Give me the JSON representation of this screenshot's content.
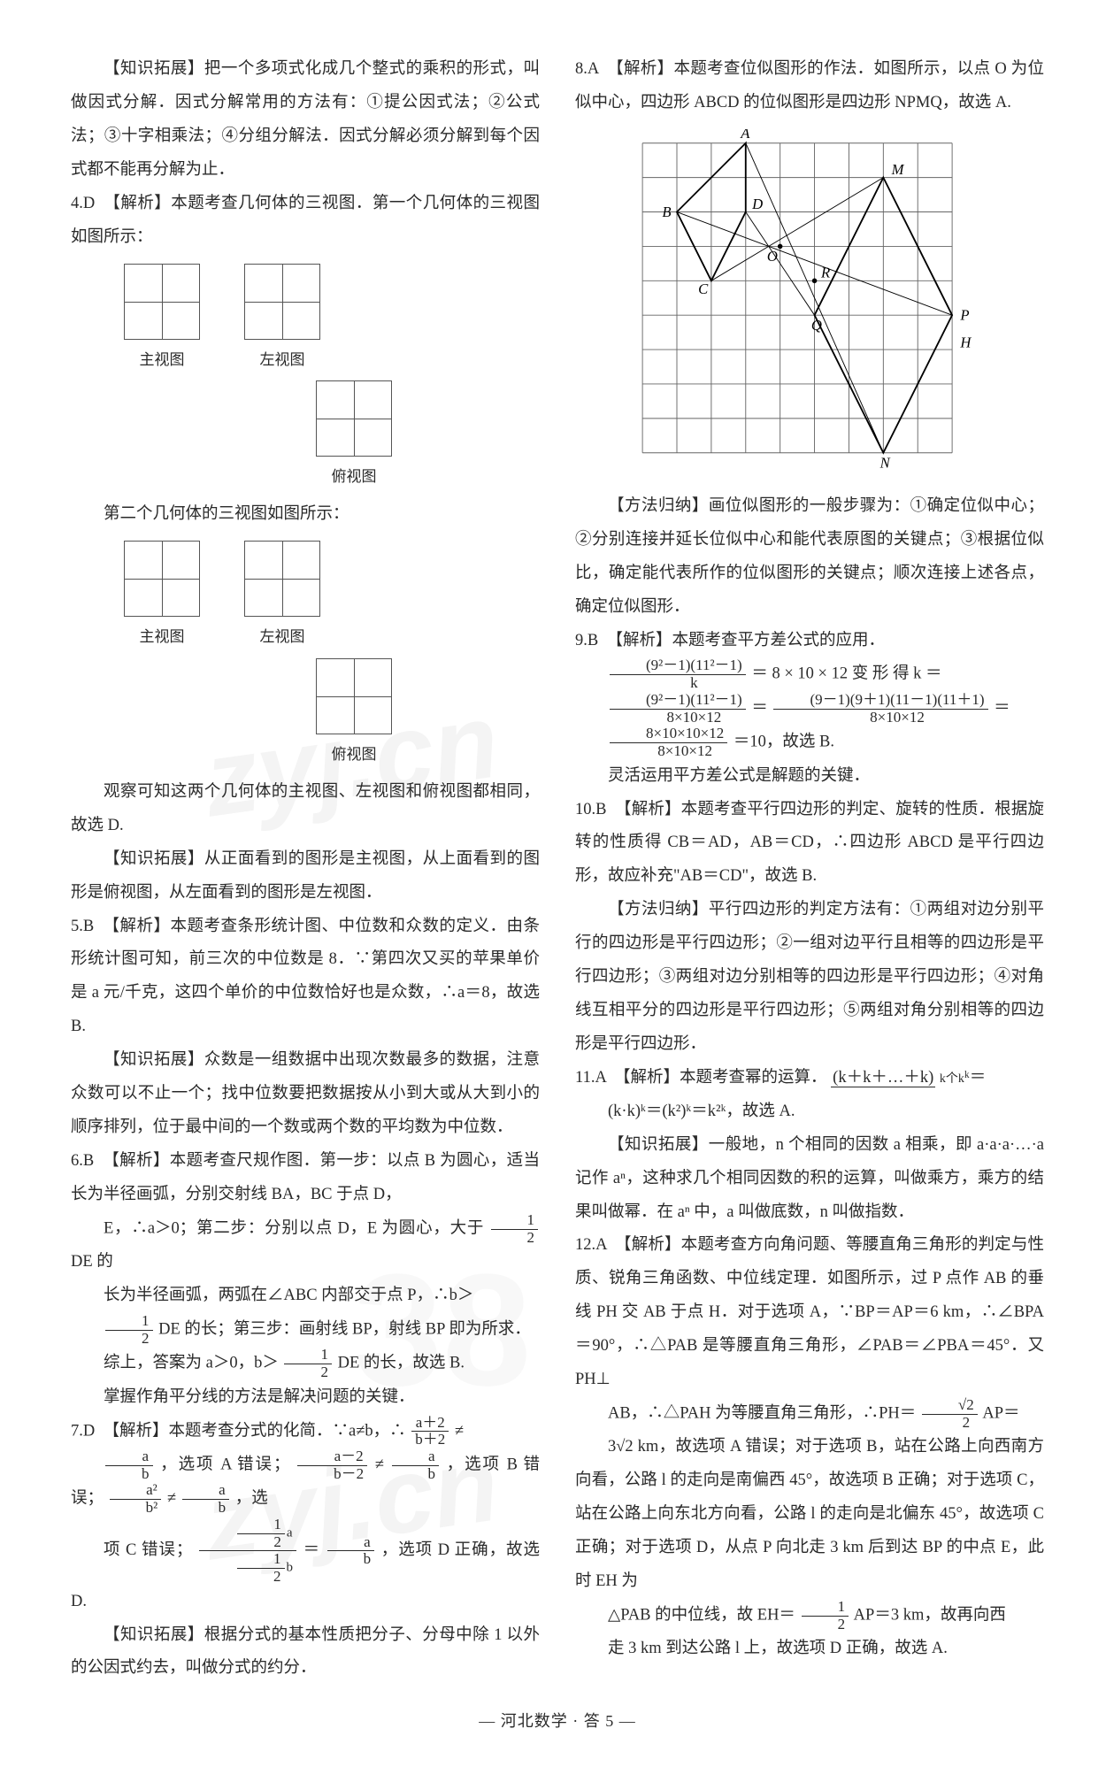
{
  "watermarks": {
    "text": "zyj.cn",
    "bg38": "38"
  },
  "left": {
    "kz1": "【知识拓展】把一个多项式化成几个整式的乘积的形式，叫做因式分解．因式分解常用的方法有：①提公因式法；②公式法；③十字相乘法；④分组分解法．因式分解必须分解到每个因式都不能再分解为止．",
    "q4_head": "4.D　【解析】本题考查几何体的三视图．第一个几何体的三视图如图所示：",
    "views": {
      "zhu": "主视图",
      "zuo": "左视图",
      "fu": "俯视图"
    },
    "q4_mid": "第二个几何体的三视图如图所示：",
    "q4_after": "观察可知这两个几何体的主视图、左视图和俯视图都相同，故选 D.",
    "kz2": "【知识拓展】从正面看到的图形是主视图，从上面看到的图形是俯视图，从左面看到的图形是左视图．",
    "q5": "5.B　【解析】本题考查条形统计图、中位数和众数的定义．由条形统计图可知，前三次的中位数是 8．∵第四次又买的苹果单价是 a 元/千克，这四个单价的中位数恰好也是众数，∴a＝8，故选 B.",
    "kz3": "【知识拓展】众数是一组数据中出现次数最多的数据，注意众数可以不止一个；找中位数要把数据按从小到大或从大到小的顺序排列，位于最中间的一个数或两个数的平均数为中位数．",
    "q6_a": "6.B　【解析】本题考查尺规作图．第一步：以点 B 为圆心，适当长为半径画弧，分别交射线 BA，BC 于点 D，",
    "q6_b": "E，∴a＞0；第二步：分别以点 D，E 为圆心，大于 ",
    "q6_b2": " DE 的",
    "q6_c": "长为半径画弧，两弧在∠ABC 内部交于点 P，∴b＞",
    "q6_d": "DE 的长；第三步：画射线 BP，射线 BP 即为所求．",
    "q6_e": "综上，答案为 a＞0，b＞",
    "q6_e2": "DE 的长，故选 B.",
    "q6_f": "掌握作角平分线的方法是解决问题的关键．",
    "q7_a": "7.D　【解析】本题考查分式的化简．∵a≠b，∴",
    "q7_a2": "≠",
    "q7_b": "，选项 A 错误；",
    "q7_b2": "≠",
    "q7_b3": "，选项 B 错误；",
    "q7_b4": "≠",
    "q7_b5": "，选",
    "q7_c": "项 C 错误；",
    "q7_c2": "＝",
    "q7_c3": "，选项 D 正确，故选 D.",
    "kz4": "【知识拓展】根据分式的基本性质把分子、分母中除 1 以外的公因式约去，叫做分式的约分．",
    "frac_half_num": "1",
    "frac_half_den": "2",
    "f_a2b2_n": "a＋2",
    "f_a2b2_d": "b＋2",
    "f_ab_n": "a",
    "f_ab_d": "b",
    "f_am2_n": "a－2",
    "f_am2_d": "b－2",
    "f_a2_n": "a²",
    "f_a2_d": "b²",
    "f_halfa_n": "½a",
    "f_halfa_d": "½b"
  },
  "right": {
    "q8": "8.A　【解析】本题考查位似图形的作法．如图所示，以点 O 为位似中心，四边形 ABCD 的位似图形是四边形 NPMQ，故选 A.",
    "grid": {
      "cols": 9,
      "rows": 9,
      "cell": 42,
      "line_color": "#666",
      "bg": "#fff",
      "labels": {
        "A": [
          3,
          0
        ],
        "B": [
          1,
          2
        ],
        "C": [
          2,
          4
        ],
        "D": [
          3,
          2
        ],
        "O": [
          4,
          3
        ],
        "M": [
          7,
          1
        ],
        "R": [
          5,
          4
        ],
        "Q": [
          5,
          5
        ],
        "P": [
          9,
          5
        ],
        "H": [
          9,
          5.7
        ],
        "N": [
          7,
          9
        ]
      },
      "poly1": [
        [
          3,
          0
        ],
        [
          1,
          2
        ],
        [
          2,
          4
        ],
        [
          3,
          2
        ]
      ],
      "poly2": [
        [
          7,
          1
        ],
        [
          9,
          5
        ],
        [
          7,
          9
        ],
        [
          5,
          5
        ]
      ]
    },
    "mf1": "【方法归纳】画位似图形的一般步骤为：①确定位似中心；②分别连接并延长位似中心和能代表原图的关键点；③根据位似比，确定能代表所作的位似图形的关键点；顺次连接上述各点，确定位似图形．",
    "q9_a": "9.B　【解析】本题考查平方差公式的应用．",
    "q9_f1n": "(9²－1)(11²－1)",
    "q9_f1d": "k",
    "q9_b": "＝ 8 × 10 × 12  变 形 得  k ＝",
    "q9_f2n": "(9²－1)(11²－1)",
    "q9_f2d": "8×10×12",
    "q9_c": "＝",
    "q9_f3n": "(9－1)(9＋1)(11－1)(11＋1)",
    "q9_f3d": "8×10×12",
    "q9_d": "＝",
    "q9_f4n": "8×10×10×12",
    "q9_f4d": "8×10×12",
    "q9_e": "＝10，故选 B.",
    "q9_f": "灵活运用平方差公式是解题的关键．",
    "q10": "10.B　【解析】本题考查平行四边形的判定、旋转的性质．根据旋转的性质得 CB＝AD，AB＝CD，∴四边形 ABCD 是平行四边形，故应补充\"AB＝CD\"，故选 B.",
    "mf2": "【方法归纳】平行四边形的判定方法有：①两组对边分别平行的四边形是平行四边形；②一组对边平行且相等的四边形是平行四边形；③两组对边分别相等的四边形是平行四边形；④对角线互相平分的四边形是平行四边形；⑤两组对角分别相等的四边形是平行四边形．",
    "q11_a": "11.A　【解析】本题考查幂的运算．",
    "q11_ub_top": "(k＋k＋…＋k)",
    "q11_ub_bot": "k个k",
    "q11_a2": "ᵏ＝",
    "q11_b": "(k·k)ᵏ＝(k²)ᵏ＝k²ᵏ，故选 A.",
    "kz5": "【知识拓展】一般地，n 个相同的因数 a 相乘，即 a·a·a·…·a 记作 aⁿ，这种求几个相同因数的积的运算，叫做乘方，乘方的结果叫做幂．在 aⁿ 中，a 叫做底数，n 叫做指数．",
    "q12_a": "12.A　【解析】本题考查方向角问题、等腰直角三角形的判定与性质、锐角三角函数、中位线定理．如图所示，过 P 点作 AB 的垂线 PH 交 AB 于点 H．对于选项 A，∵BP＝AP＝6 km，∴∠BPA＝90°，∴△PAB 是等腰直角三角形，∠PAB＝∠PBA＝45°．又 PH⊥",
    "q12_b": "AB，∴△PAH 为等腰直角三角形，∴PH＝",
    "q12_b2": "AP＝",
    "sqrt2_2_n": "√2",
    "sqrt2_2_d": "2",
    "q12_c": "3√2 km，故选项 A 错误；对于选项 B，站在公路上向西南方向看，公路 l 的走向是南偏西 45°，故选项 B 正确；对于选项 C，站在公路上向东北方向看，公路 l 的走向是北偏东 45°，故选项 C 正确；对于选项 D，从点 P 向北走 3 km 后到达 BP 的中点 E，此时 EH 为",
    "q12_d": "△PAB 的中位线，故 EH＝",
    "q12_d2": "AP＝3 km，故再向西",
    "q12_e": "走 3 km 到达公路 l 上，故选项 D 正确，故选 A."
  },
  "footer": "— 河北数学 · 答 5 —"
}
